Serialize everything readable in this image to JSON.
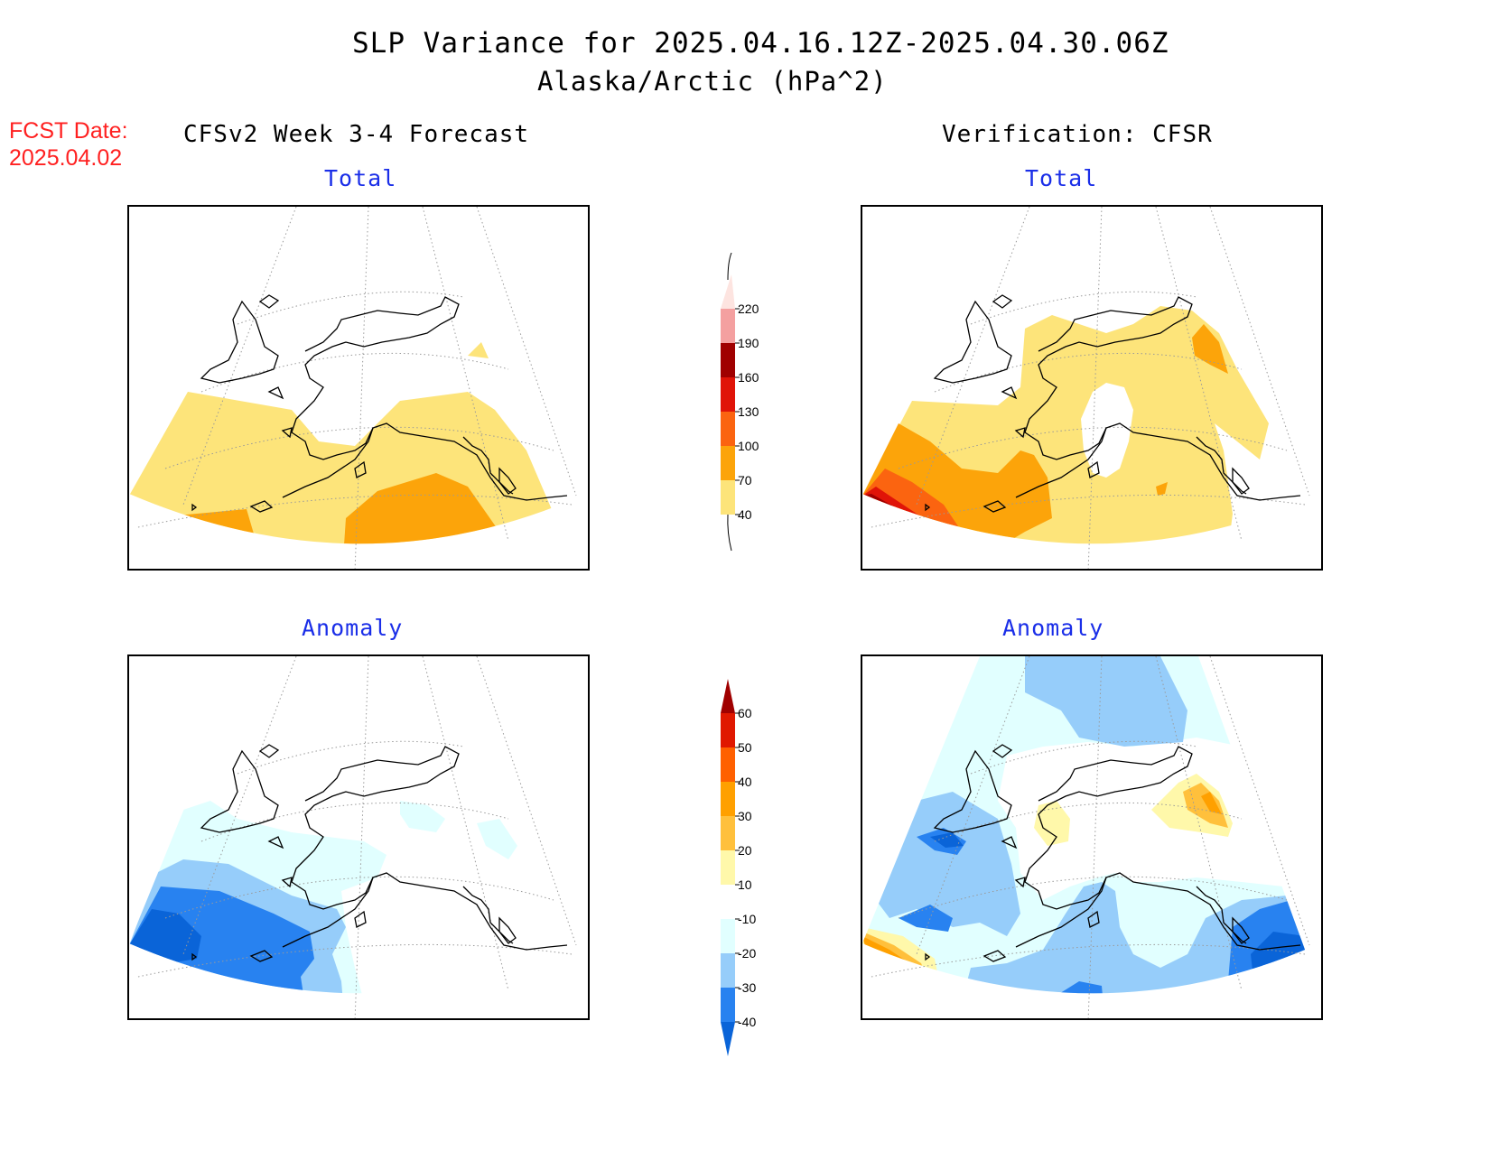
{
  "header": {
    "title": "SLP Variance for 2025.04.16.12Z-2025.04.30.06Z",
    "subtitle": "Alaska/Arctic (hPa^2)"
  },
  "fcst": {
    "label": "FCST Date:",
    "date": "2025.04.02"
  },
  "columns": {
    "left": "CFSv2 Week 3-4 Forecast",
    "right": "Verification: CFSR"
  },
  "panels": {
    "forecast_total": "Total",
    "verify_total": "Total",
    "forecast_anomaly": "Anomaly",
    "verify_anomaly": "Anomaly"
  },
  "colorbars": {
    "total": {
      "labels": [
        "40",
        "70",
        "100",
        "130",
        "160",
        "190",
        "220"
      ],
      "colors": [
        "#fde47a",
        "#fca40a",
        "#fb6410",
        "#e01408",
        "#a00000",
        "#f4a0a0",
        "#fde4e0"
      ]
    },
    "anomaly": {
      "labels": [
        "-40",
        "-30",
        "-20",
        "-10",
        "10",
        "20",
        "30",
        "40",
        "50",
        "60"
      ],
      "colors": [
        "#0a64d8",
        "#2882f0",
        "#96cdfa",
        "#e1ffff",
        "#ffffff",
        "#fff8aa",
        "#ffc03c",
        "#ffa000",
        "#ff6000",
        "#e01800",
        "#a00000"
      ]
    }
  }
}
